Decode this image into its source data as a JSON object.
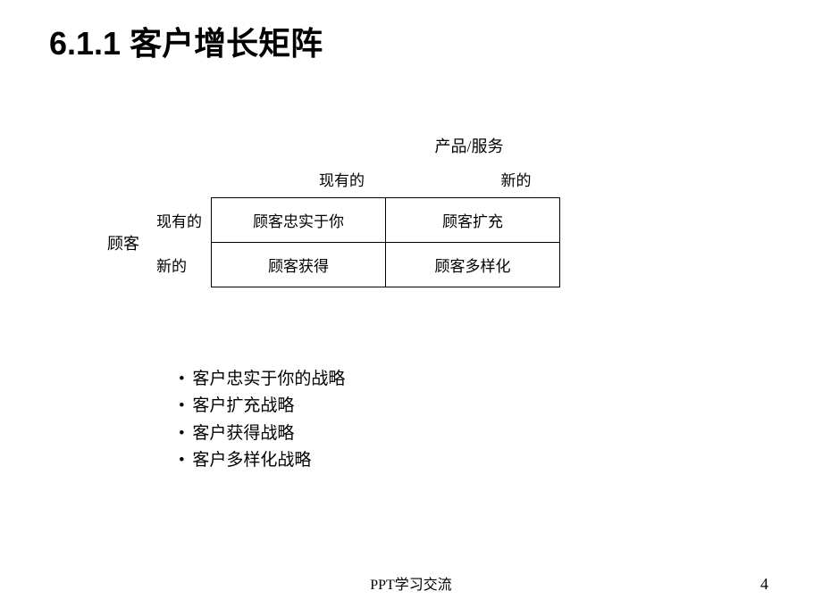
{
  "title": "6.1.1  客户增长矩阵",
  "matrix": {
    "top_header": "产品/服务",
    "col_headers": [
      "现有的",
      "新的"
    ],
    "left_label": "顾客",
    "row_labels": [
      "现有的",
      "新的"
    ],
    "cells": [
      [
        "顾客忠实于你",
        "顾客扩充"
      ],
      [
        "顾客获得",
        "顾客多样化"
      ]
    ]
  },
  "bullets": [
    "客户忠实于你的战略",
    "客户扩充战略",
    "客户获得战略",
    "客户多样化战略"
  ],
  "footer_text": "PPT学习交流",
  "page_number": "4",
  "colors": {
    "background": "#ffffff",
    "text": "#000000",
    "border": "#000000"
  }
}
